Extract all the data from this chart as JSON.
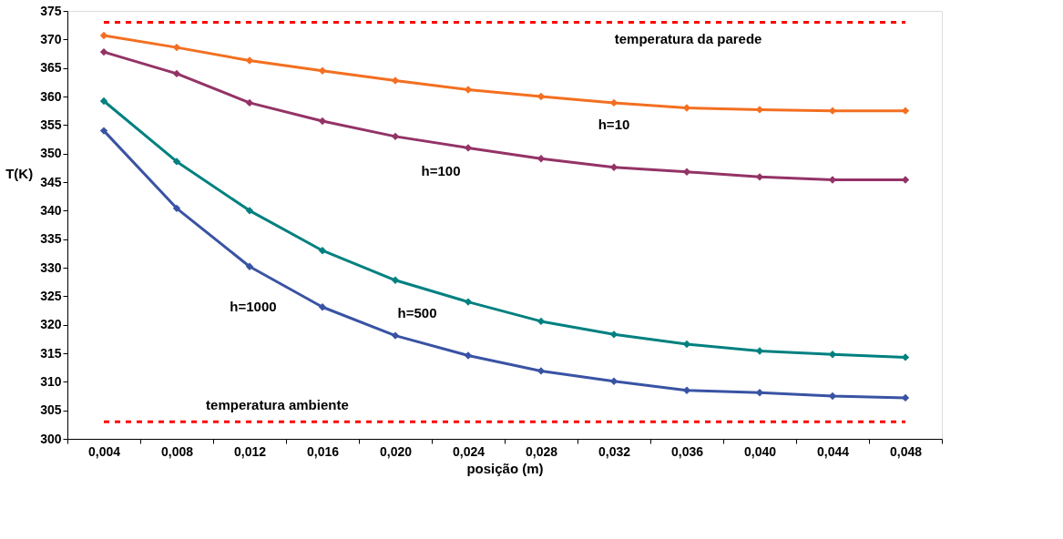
{
  "chart_data": {
    "type": "line",
    "xlabel": "posição (m)",
    "ylabel": "T(K)",
    "categories": [
      "0,004",
      "0,008",
      "0,012",
      "0,016",
      "0,020",
      "0,024",
      "0,028",
      "0,032",
      "0,036",
      "0,040",
      "0,044",
      "0,048"
    ],
    "series": [
      {
        "name": "h=10",
        "color": "#f36f21",
        "values": [
          370.7,
          368.6,
          366.3,
          364.5,
          362.8,
          361.2,
          360.0,
          358.9,
          358.0,
          357.7,
          357.5,
          357.5
        ]
      },
      {
        "name": "h=100",
        "color": "#933366",
        "values": [
          367.8,
          364.0,
          358.9,
          355.7,
          353.0,
          351.0,
          349.1,
          347.6,
          346.8,
          345.9,
          345.4,
          345.4
        ]
      },
      {
        "name": "h=500",
        "color": "#008080",
        "values": [
          359.2,
          348.6,
          340.0,
          333.0,
          327.8,
          324.0,
          320.6,
          318.3,
          316.6,
          315.4,
          314.8,
          314.3
        ]
      },
      {
        "name": "h=1000",
        "color": "#3953a4",
        "values": [
          354.0,
          340.4,
          330.2,
          323.1,
          318.1,
          314.6,
          311.9,
          310.1,
          308.5,
          308.1,
          307.5,
          307.2
        ]
      }
    ],
    "ylim": [
      300,
      375
    ],
    "yticks": [
      300,
      305,
      310,
      315,
      320,
      325,
      330,
      335,
      340,
      345,
      350,
      355,
      360,
      365,
      370,
      375
    ],
    "grid": false,
    "marker": "diamond",
    "line_style": "solid",
    "ref_lines": [
      {
        "axis": "y",
        "value": 373,
        "label": "temperatura da parede",
        "color": "#ff0000",
        "line_style": "dashed"
      },
      {
        "axis": "y",
        "value": 303,
        "label": "temperatura ambiente",
        "color": "#ff0000",
        "line_style": "dashed"
      }
    ]
  }
}
